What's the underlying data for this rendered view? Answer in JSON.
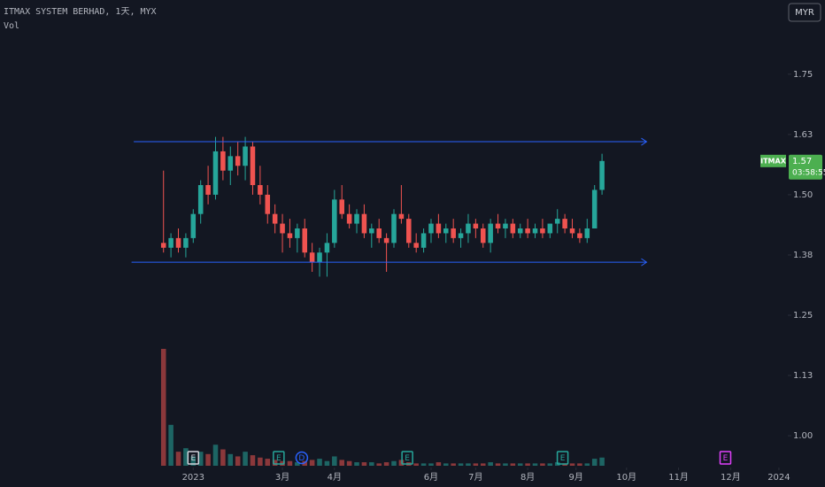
{
  "chart_data": {
    "type": "candlestick",
    "title": "ITMAX SYSTEM BERHAD, 1天, MYX",
    "subtitle": "Vol",
    "currency": "MYR",
    "x": [
      0,
      1,
      2,
      3,
      4,
      5,
      6,
      7,
      8,
      9,
      10,
      11,
      12,
      13,
      14,
      15,
      16,
      17,
      18,
      19,
      20,
      21,
      22,
      23,
      24,
      25,
      26,
      27,
      28,
      29,
      30,
      31,
      32,
      33,
      34,
      35,
      36,
      37,
      38,
      39,
      40,
      41,
      42,
      43,
      44,
      45,
      46,
      47,
      48,
      49,
      50,
      51,
      52,
      53,
      54,
      55,
      56,
      57,
      58,
      59
    ],
    "open": [
      1.4,
      1.39,
      1.41,
      1.39,
      1.41,
      1.46,
      1.52,
      1.5,
      1.59,
      1.55,
      1.58,
      1.56,
      1.6,
      1.52,
      1.5,
      1.46,
      1.44,
      1.42,
      1.41,
      1.43,
      1.38,
      1.36,
      1.38,
      1.4,
      1.49,
      1.46,
      1.44,
      1.46,
      1.42,
      1.43,
      1.41,
      1.4,
      1.46,
      1.45,
      1.4,
      1.39,
      1.42,
      1.44,
      1.42,
      1.43,
      1.41,
      1.42,
      1.44,
      1.43,
      1.4,
      1.44,
      1.43,
      1.44,
      1.42,
      1.43,
      1.42,
      1.43,
      1.42,
      1.44,
      1.45,
      1.43,
      1.42,
      1.41,
      1.43,
      1.51
    ],
    "high": [
      1.55,
      1.42,
      1.43,
      1.42,
      1.47,
      1.53,
      1.56,
      1.62,
      1.62,
      1.6,
      1.61,
      1.62,
      1.61,
      1.56,
      1.52,
      1.48,
      1.46,
      1.45,
      1.44,
      1.45,
      1.4,
      1.39,
      1.42,
      1.51,
      1.52,
      1.48,
      1.47,
      1.48,
      1.44,
      1.45,
      1.42,
      1.47,
      1.52,
      1.46,
      1.42,
      1.43,
      1.45,
      1.46,
      1.44,
      1.45,
      1.43,
      1.46,
      1.45,
      1.44,
      1.45,
      1.46,
      1.45,
      1.45,
      1.44,
      1.45,
      1.44,
      1.45,
      1.44,
      1.47,
      1.46,
      1.45,
      1.43,
      1.45,
      1.52,
      1.585
    ],
    "low": [
      1.38,
      1.37,
      1.38,
      1.37,
      1.4,
      1.44,
      1.48,
      1.49,
      1.53,
      1.52,
      1.54,
      1.53,
      1.5,
      1.48,
      1.44,
      1.42,
      1.38,
      1.39,
      1.38,
      1.37,
      1.34,
      1.33,
      1.33,
      1.39,
      1.45,
      1.43,
      1.42,
      1.41,
      1.39,
      1.4,
      1.34,
      1.39,
      1.44,
      1.39,
      1.38,
      1.38,
      1.4,
      1.41,
      1.4,
      1.4,
      1.39,
      1.4,
      1.41,
      1.39,
      1.38,
      1.42,
      1.41,
      1.41,
      1.41,
      1.41,
      1.41,
      1.41,
      1.41,
      1.42,
      1.42,
      1.41,
      1.4,
      1.4,
      1.43,
      1.5
    ],
    "close": [
      1.39,
      1.41,
      1.39,
      1.41,
      1.46,
      1.52,
      1.5,
      1.59,
      1.55,
      1.58,
      1.56,
      1.6,
      1.52,
      1.5,
      1.46,
      1.44,
      1.42,
      1.41,
      1.43,
      1.38,
      1.36,
      1.38,
      1.4,
      1.49,
      1.46,
      1.44,
      1.46,
      1.42,
      1.43,
      1.41,
      1.4,
      1.46,
      1.45,
      1.4,
      1.39,
      1.42,
      1.44,
      1.42,
      1.43,
      1.41,
      1.42,
      1.44,
      1.43,
      1.4,
      1.44,
      1.43,
      1.44,
      1.42,
      1.43,
      1.42,
      1.43,
      1.42,
      1.44,
      1.45,
      1.43,
      1.42,
      1.41,
      1.43,
      1.51,
      1.57
    ],
    "volume": [
      100,
      35,
      12,
      15,
      8,
      12,
      10,
      18,
      14,
      10,
      8,
      12,
      9,
      7,
      6,
      5,
      4,
      4,
      3,
      4,
      5,
      6,
      4,
      8,
      5,
      4,
      3,
      3,
      3,
      2,
      3,
      4,
      5,
      3,
      2,
      2,
      2,
      3,
      2,
      2,
      2,
      2,
      2,
      2,
      3,
      2,
      2,
      2,
      2,
      2,
      2,
      2,
      2,
      3,
      2,
      2,
      2,
      2,
      6,
      7
    ],
    "up_color": "#26a69a",
    "down_color": "#ef5350",
    "xlim": [
      -22,
      84
    ],
    "xticks": [
      {
        "value": 4,
        "label": "2023"
      },
      {
        "value": 16,
        "label": "3月"
      },
      {
        "value": 23,
        "label": "4月"
      },
      {
        "value": 36,
        "label": "6月"
      },
      {
        "value": 42,
        "label": "7月"
      },
      {
        "value": 49,
        "label": "8月"
      },
      {
        "value": 55.5,
        "label": "9月"
      },
      {
        "value": 62.3,
        "label": "10月"
      },
      {
        "value": 69.3,
        "label": "11月"
      },
      {
        "value": 76.3,
        "label": "12月"
      },
      {
        "value": 82.8,
        "label": "2024"
      }
    ],
    "ylim": [
      0.934,
      1.904
    ],
    "yticks": [
      {
        "value": 1.75,
        "label": "1.75"
      },
      {
        "value": 1.625,
        "label": "1.63"
      },
      {
        "value": 1.5,
        "label": "1.50"
      },
      {
        "value": 1.375,
        "label": "1.38"
      },
      {
        "value": 1.25,
        "label": "1.25"
      },
      {
        "value": 1.125,
        "label": "1.13"
      },
      {
        "value": 1.0,
        "label": "1.00"
      }
    ],
    "trend_lines": [
      {
        "x": [
          -4,
          65
        ],
        "y": [
          1.61,
          1.61
        ],
        "color": "#2962ff"
      },
      {
        "x": [
          -4.3,
          65
        ],
        "y": [
          1.36,
          1.36
        ],
        "color": "#2962ff"
      }
    ],
    "events": [
      {
        "label": "E",
        "x": 4,
        "color": "#d1d4dc"
      },
      {
        "label": "E",
        "x": 15.5,
        "color": "#26a69a"
      },
      {
        "label": "D",
        "x": 18.6,
        "color": "#2962ff"
      },
      {
        "label": "E",
        "x": 32.8,
        "color": "#26a69a"
      },
      {
        "label": "E",
        "x": 53.7,
        "color": "#26a69a"
      },
      {
        "label": "E",
        "x": 75.6,
        "color": "#e040fb"
      }
    ],
    "price_tag": {
      "symbol": "ITMAX",
      "price": 1.57,
      "countdown": "03:58:55",
      "color": "#4caf50"
    }
  }
}
